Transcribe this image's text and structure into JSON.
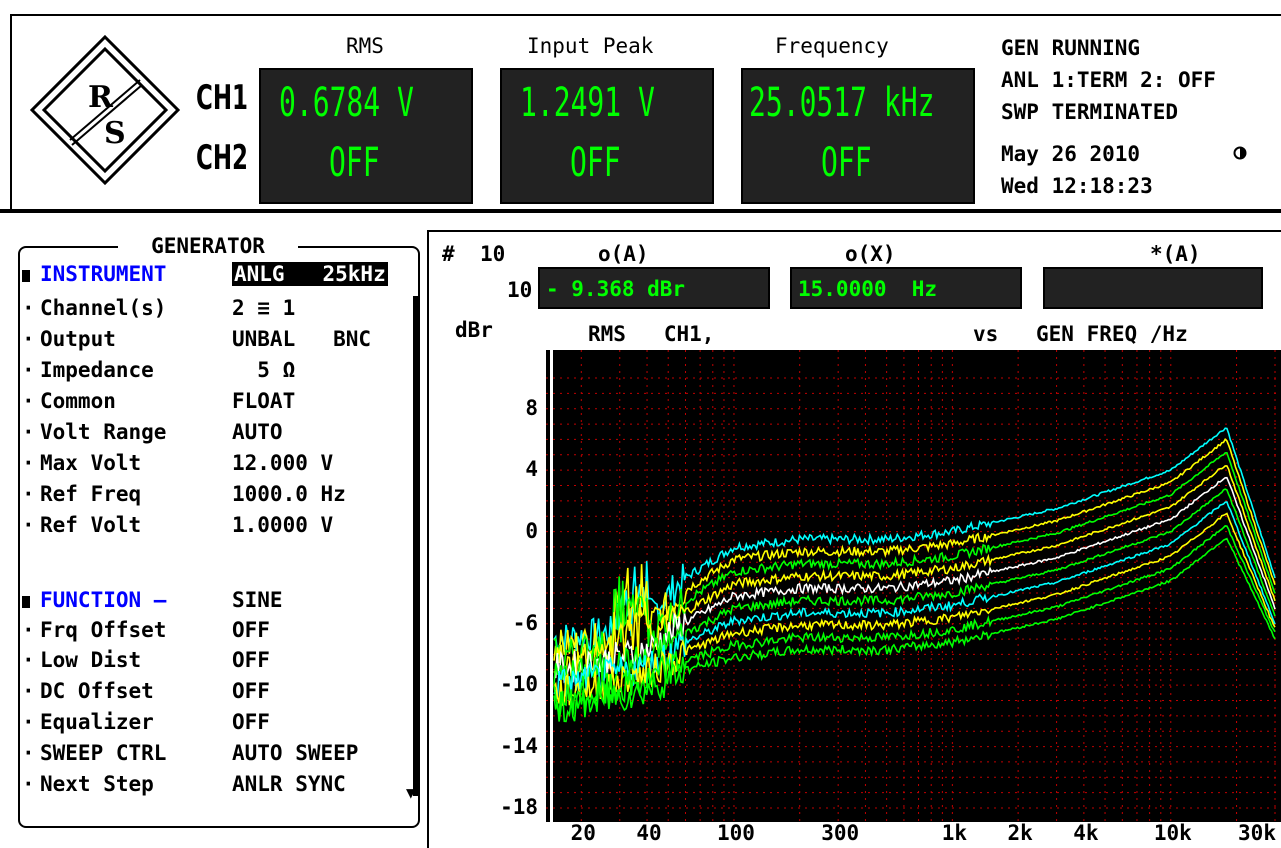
{
  "header": {
    "columns": {
      "rms": "RMS",
      "input_peak": "Input Peak",
      "frequency": "Frequency"
    },
    "channels": {
      "ch1": "CH1",
      "ch2": "CH2"
    },
    "readings": {
      "ch1_rms": "0.6784  V",
      "ch1_peak": "1.2491  V",
      "ch1_freq": "25.0517 kHz",
      "ch2_rms": "OFF",
      "ch2_peak": "OFF",
      "ch2_freq": "OFF"
    },
    "status": {
      "line1": "GEN RUNNING",
      "line2": "ANL 1:TERM 2: OFF",
      "line3": "SWP TERMINATED",
      "date": "May 26 2010",
      "time": "Wed 12:18:23"
    },
    "logo_text": "R&S"
  },
  "generator_panel": {
    "title": "GENERATOR",
    "sections": [
      {
        "header": {
          "label": "INSTRUMENT",
          "value": "ANLG   25kHz"
        },
        "rows": [
          {
            "label": "Channel(s)",
            "value": "2 ≡ 1"
          },
          {
            "label": "Output",
            "value": "UNBAL   BNC"
          },
          {
            "label": "Impedance",
            "value": "  5 Ω"
          },
          {
            "label": "Common",
            "value": "FLOAT"
          },
          {
            "label": "Volt Range",
            "value": "AUTO"
          },
          {
            "label": "Max Volt",
            "value": "12.000 V"
          },
          {
            "label": "Ref Freq",
            "value": "1000.0 Hz"
          },
          {
            "label": "Ref Volt",
            "value": "1.0000 V"
          }
        ]
      },
      {
        "header": {
          "label": "FUNCTION –",
          "value": "SINE"
        },
        "rows": [
          {
            "label": "Frq Offset",
            "value": "OFF"
          },
          {
            "label": "Low Dist",
            "value": "OFF"
          },
          {
            "label": "DC Offset",
            "value": "OFF"
          },
          {
            "label": "Equalizer",
            "value": "OFF"
          },
          {
            "label": "SWEEP CTRL",
            "value": "AUTO SWEEP"
          },
          {
            "label": "Next Step",
            "value": "ANLR SYNC"
          }
        ]
      }
    ]
  },
  "graph": {
    "count_label": "#",
    "count_value": "10",
    "row2_count": "10",
    "cursor_a_label": "o(A)",
    "cursor_x_label": "o(X)",
    "cursor_star_label": "*(A)",
    "cursor_a_value": "- 9.368 dBr",
    "cursor_x_value": "15.0000  Hz",
    "cursor_star_value": "",
    "y_unit": "dBr",
    "trace_desc": "RMS   CH1,",
    "vs_label": "vs",
    "x_desc": "GEN FREQ /Hz"
  },
  "chart_data": {
    "type": "line",
    "xscale": "log",
    "xlim": [
      15,
      30000
    ],
    "ylim": [
      -18,
      10
    ],
    "y_ticks": [
      "8",
      "4",
      "0",
      "-6",
      "-10",
      "-14",
      "-18"
    ],
    "y_tick_values": [
      8,
      4,
      0,
      -6,
      -10,
      -14,
      -18
    ],
    "x_ticks": [
      "20",
      "40",
      "100",
      "300",
      "1k",
      "2k",
      "4k",
      "10k",
      "30k"
    ],
    "x_tick_values": [
      20,
      40,
      100,
      300,
      1000,
      2000,
      4000,
      10000,
      30000
    ],
    "grid": true,
    "series": [
      {
        "color": "#00ffff",
        "y_at": [
          [
            15,
            -7
          ],
          [
            20,
            -6.8
          ],
          [
            30,
            -6.5
          ],
          [
            40,
            -5.5
          ],
          [
            60,
            -3
          ],
          [
            100,
            -1
          ],
          [
            200,
            -0.5
          ],
          [
            500,
            -0.5
          ],
          [
            1000,
            0
          ],
          [
            3000,
            1.5
          ],
          [
            10000,
            4
          ],
          [
            18000,
            6.8
          ],
          [
            30000,
            -3
          ]
        ]
      },
      {
        "color": "#ffff00",
        "y_at": [
          [
            15,
            -7.5
          ],
          [
            20,
            -7.3
          ],
          [
            40,
            -6.2
          ],
          [
            60,
            -3.8
          ],
          [
            100,
            -1.8
          ],
          [
            200,
            -1.3
          ],
          [
            500,
            -1.3
          ],
          [
            1000,
            -0.8
          ],
          [
            3000,
            0.7
          ],
          [
            10000,
            3.2
          ],
          [
            18000,
            6
          ],
          [
            30000,
            -3.5
          ]
        ]
      },
      {
        "color": "#00ff00",
        "y_at": [
          [
            15,
            -8
          ],
          [
            20,
            -7.8
          ],
          [
            40,
            -6.8
          ],
          [
            60,
            -4.5
          ],
          [
            100,
            -2.6
          ],
          [
            200,
            -2.1
          ],
          [
            500,
            -2.1
          ],
          [
            1000,
            -1.6
          ],
          [
            3000,
            -0.1
          ],
          [
            10000,
            2.4
          ],
          [
            18000,
            5.2
          ],
          [
            30000,
            -4
          ]
        ]
      },
      {
        "color": "#ffff00",
        "y_at": [
          [
            15,
            -8.5
          ],
          [
            20,
            -8.3
          ],
          [
            40,
            -7.3
          ],
          [
            60,
            -5.2
          ],
          [
            100,
            -3.4
          ],
          [
            200,
            -2.9
          ],
          [
            500,
            -2.9
          ],
          [
            1000,
            -2.4
          ],
          [
            3000,
            -0.9
          ],
          [
            10000,
            1.6
          ],
          [
            18000,
            4.4
          ],
          [
            30000,
            -4.5
          ]
        ]
      },
      {
        "color": "#ffffff",
        "y_at": [
          [
            15,
            -9
          ],
          [
            20,
            -8.8
          ],
          [
            40,
            -7.8
          ],
          [
            60,
            -5.9
          ],
          [
            100,
            -4.2
          ],
          [
            200,
            -3.7
          ],
          [
            500,
            -3.7
          ],
          [
            1000,
            -3.2
          ],
          [
            3000,
            -1.7
          ],
          [
            10000,
            0.8
          ],
          [
            18000,
            3.6
          ],
          [
            30000,
            -5
          ]
        ]
      },
      {
        "color": "#00ff00",
        "y_at": [
          [
            15,
            -9.5
          ],
          [
            20,
            -9.3
          ],
          [
            40,
            -8.3
          ],
          [
            60,
            -6.6
          ],
          [
            100,
            -5
          ],
          [
            200,
            -4.5
          ],
          [
            500,
            -4.5
          ],
          [
            1000,
            -4
          ],
          [
            3000,
            -2.5
          ],
          [
            10000,
            0
          ],
          [
            18000,
            2.8
          ],
          [
            30000,
            -5.5
          ]
        ]
      },
      {
        "color": "#00ffff",
        "y_at": [
          [
            15,
            -10
          ],
          [
            20,
            -9.8
          ],
          [
            40,
            -8.8
          ],
          [
            60,
            -7.2
          ],
          [
            100,
            -5.8
          ],
          [
            200,
            -5.3
          ],
          [
            500,
            -5.3
          ],
          [
            1000,
            -4.8
          ],
          [
            3000,
            -3.3
          ],
          [
            10000,
            -0.8
          ],
          [
            18000,
            2
          ],
          [
            30000,
            -6
          ]
        ]
      },
      {
        "color": "#ffff00",
        "y_at": [
          [
            15,
            -10.5
          ],
          [
            20,
            -10.3
          ],
          [
            40,
            -9.3
          ],
          [
            60,
            -7.8
          ],
          [
            100,
            -6.6
          ],
          [
            200,
            -6.1
          ],
          [
            500,
            -6.1
          ],
          [
            1000,
            -5.6
          ],
          [
            3000,
            -4.1
          ],
          [
            10000,
            -1.6
          ],
          [
            18000,
            1.2
          ],
          [
            30000,
            -6.3
          ]
        ]
      },
      {
        "color": "#00ff00",
        "y_at": [
          [
            15,
            -11
          ],
          [
            20,
            -10.8
          ],
          [
            40,
            -9.8
          ],
          [
            60,
            -8.4
          ],
          [
            100,
            -7.4
          ],
          [
            200,
            -6.9
          ],
          [
            500,
            -6.9
          ],
          [
            1000,
            -6.4
          ],
          [
            3000,
            -4.9
          ],
          [
            10000,
            -2.4
          ],
          [
            18000,
            0.4
          ],
          [
            30000,
            -6.6
          ]
        ]
      },
      {
        "color": "#00ff00",
        "y_at": [
          [
            15,
            -11.5
          ],
          [
            20,
            -11.3
          ],
          [
            40,
            -10.3
          ],
          [
            60,
            -9
          ],
          [
            100,
            -8.2
          ],
          [
            200,
            -7.7
          ],
          [
            500,
            -7.7
          ],
          [
            1000,
            -7.2
          ],
          [
            3000,
            -5.7
          ],
          [
            10000,
            -3.2
          ],
          [
            18000,
            -0.4
          ],
          [
            30000,
            -7
          ]
        ]
      }
    ]
  }
}
